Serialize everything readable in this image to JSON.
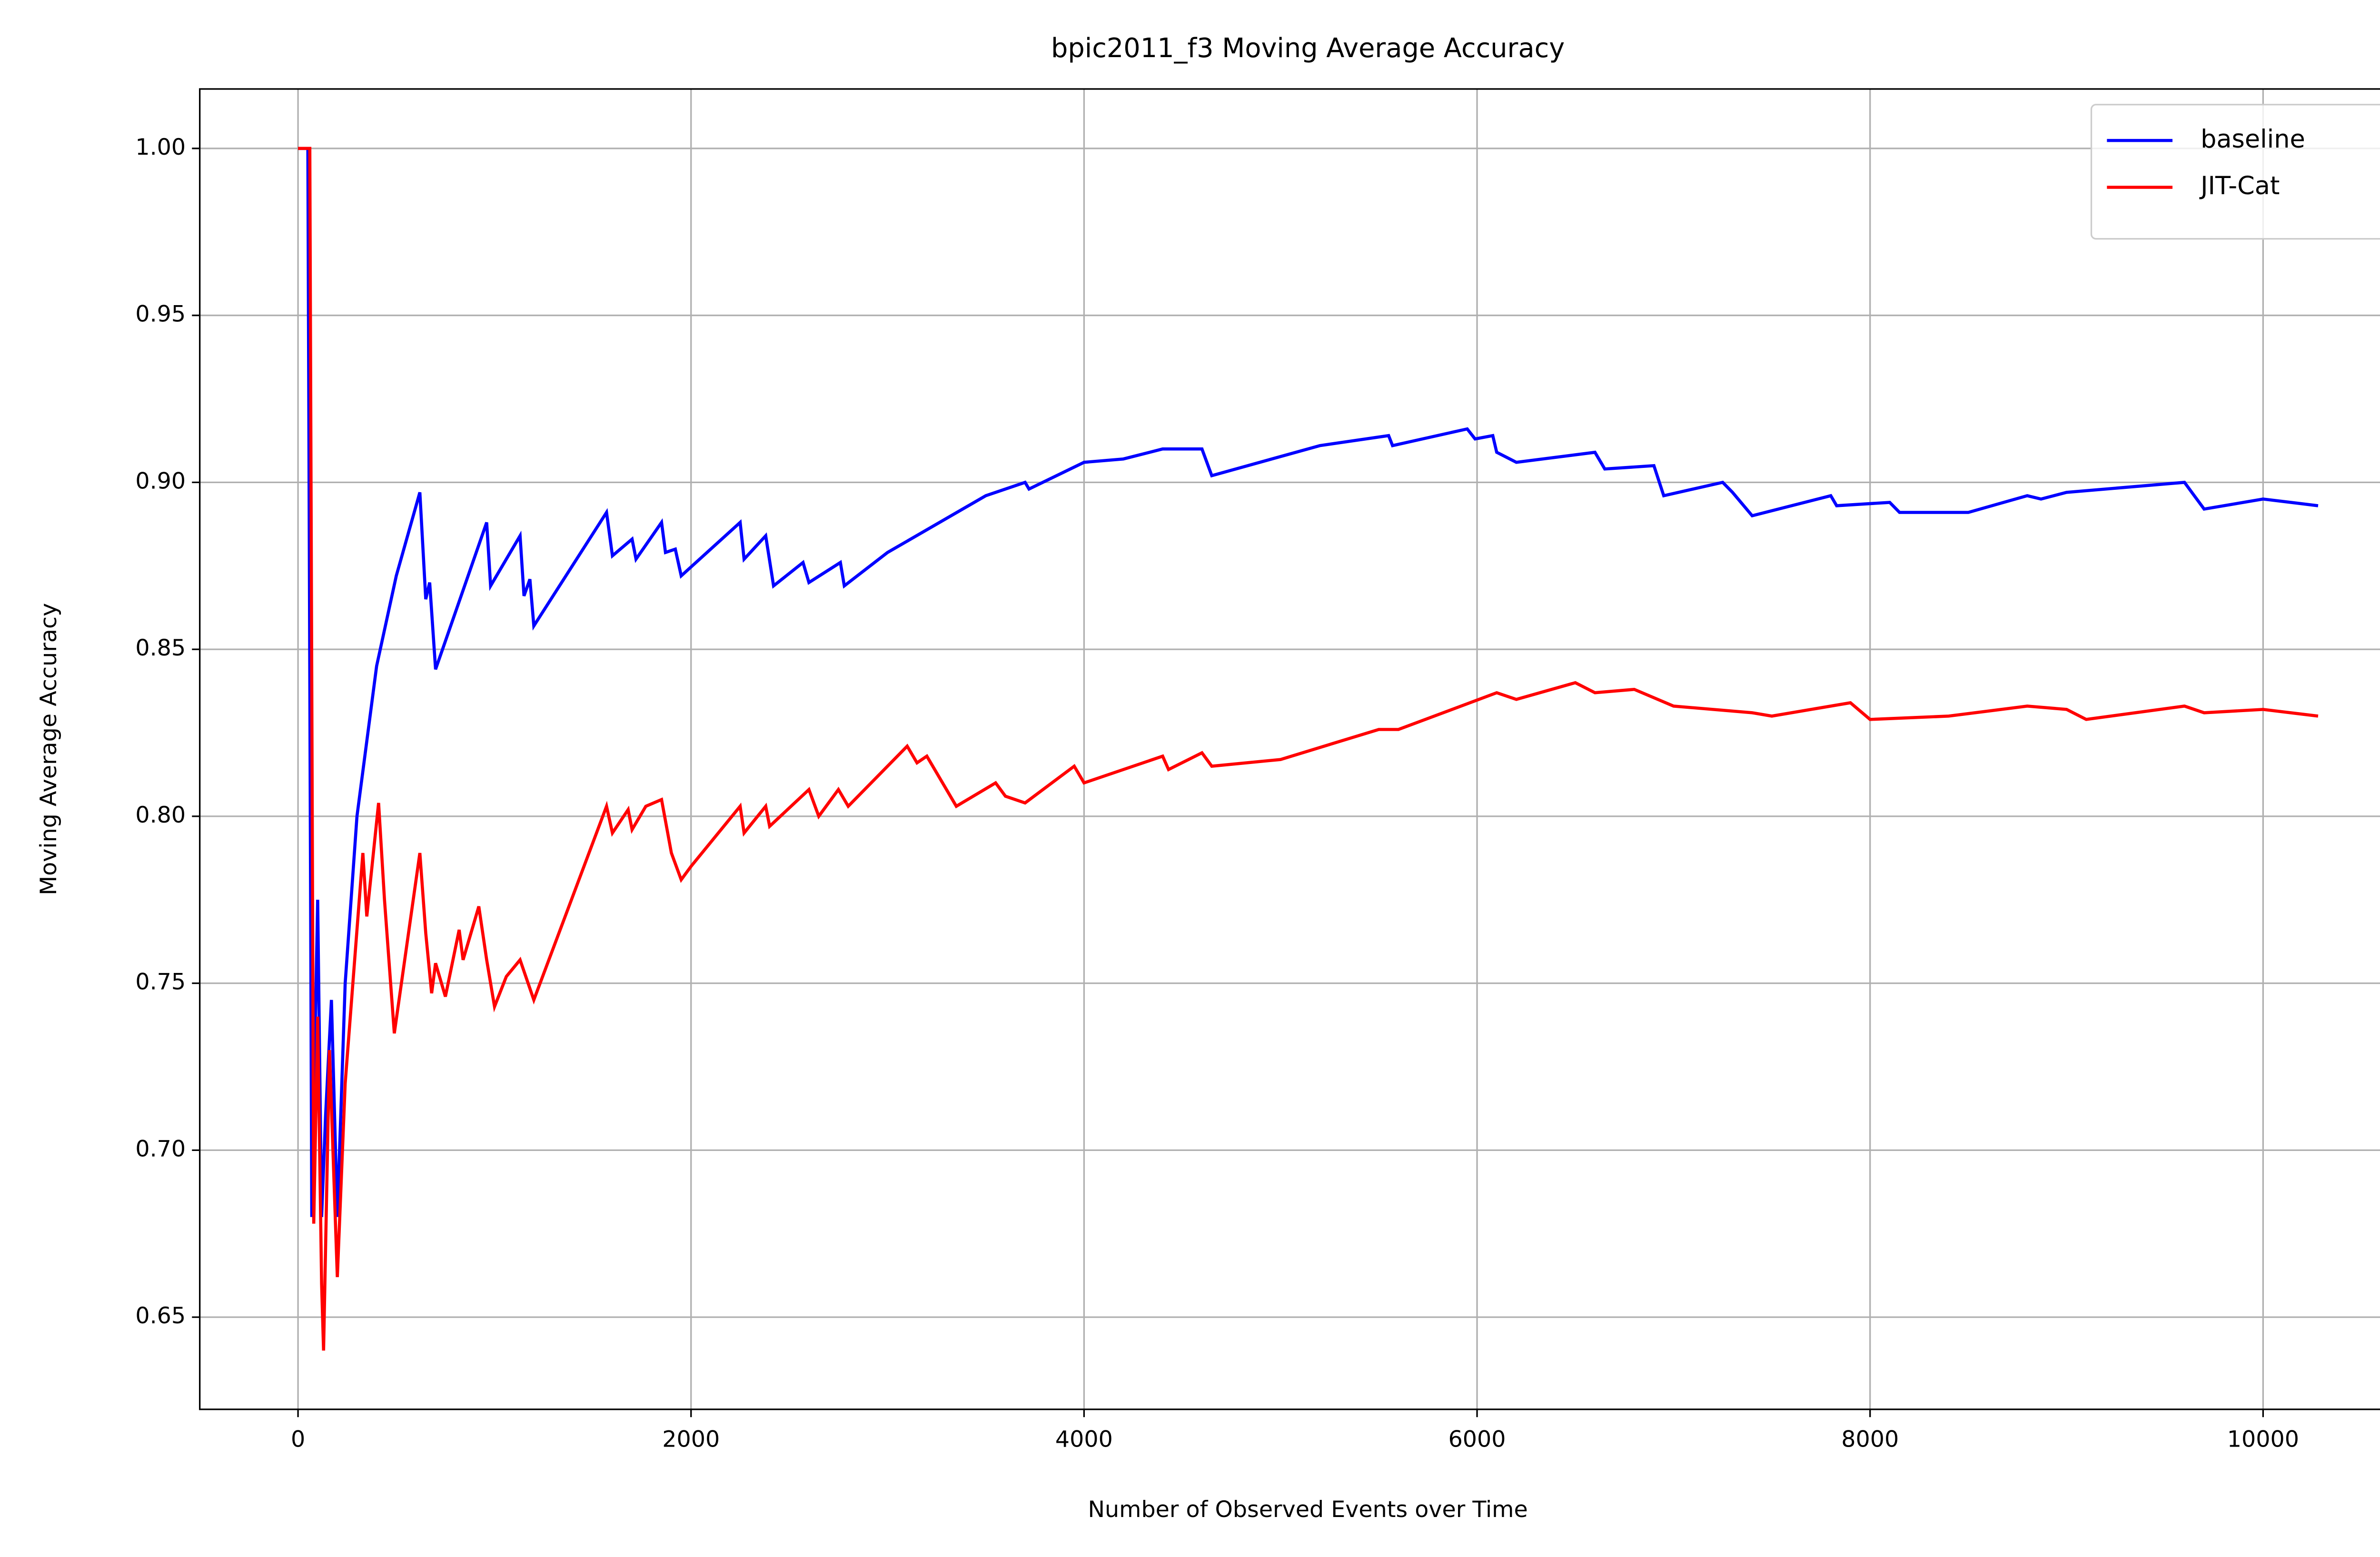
{
  "chart_data": {
    "type": "line",
    "title": "bpic2011_f3 Moving Average Accuracy",
    "xlabel": "Number of Observed Events over Time",
    "ylabel": "Moving Average Accuracy",
    "xlim": [
      -500,
      10778
    ],
    "xticks": [
      0,
      2000,
      4000,
      6000,
      8000,
      10000
    ],
    "ylim": [
      0.6224,
      1.0178
    ],
    "yticks": [
      {
        "value": 0.65,
        "label": "0.65"
      },
      {
        "value": 0.7,
        "label": "0.70"
      },
      {
        "value": 0.75,
        "label": "0.75"
      },
      {
        "value": 0.8,
        "label": "0.80"
      },
      {
        "value": 0.85,
        "label": "0.85"
      },
      {
        "value": 0.9,
        "label": "0.90"
      },
      {
        "value": 0.95,
        "label": "0.95"
      },
      {
        "value": 1.0,
        "label": "1.00"
      }
    ],
    "grid": true,
    "legend": "upper right",
    "series": [
      {
        "name": "baseline",
        "color": "#0000ff",
        "x": [
          0,
          50,
          70,
          100,
          120,
          140,
          170,
          200,
          240,
          300,
          400,
          500,
          620,
          650,
          670,
          700,
          960,
          980,
          1130,
          1150,
          1180,
          1200,
          1570,
          1600,
          1700,
          1720,
          1850,
          1870,
          1920,
          1950,
          2250,
          2270,
          2380,
          2420,
          2570,
          2600,
          2760,
          2780,
          3000,
          3500,
          3700,
          3720,
          4000,
          4200,
          4400,
          4600,
          4650,
          5200,
          5550,
          5570,
          5950,
          5990,
          6080,
          6100,
          6200,
          6600,
          6650,
          6900,
          6950,
          7250,
          7300,
          7400,
          7800,
          7830,
          8100,
          8150,
          8500,
          8800,
          8870,
          9000,
          9600,
          9650,
          9700,
          10000,
          10280
        ],
        "values": [
          1.0,
          1.0,
          0.68,
          0.775,
          0.68,
          0.71,
          0.745,
          0.68,
          0.75,
          0.8,
          0.845,
          0.872,
          0.897,
          0.865,
          0.87,
          0.844,
          0.888,
          0.869,
          0.884,
          0.866,
          0.871,
          0.857,
          0.891,
          0.878,
          0.883,
          0.877,
          0.888,
          0.879,
          0.88,
          0.872,
          0.888,
          0.877,
          0.884,
          0.869,
          0.876,
          0.87,
          0.876,
          0.869,
          0.879,
          0.896,
          0.9,
          0.898,
          0.906,
          0.907,
          0.91,
          0.91,
          0.902,
          0.911,
          0.914,
          0.911,
          0.916,
          0.913,
          0.914,
          0.909,
          0.906,
          0.909,
          0.904,
          0.905,
          0.896,
          0.9,
          0.897,
          0.89,
          0.896,
          0.893,
          0.894,
          0.891,
          0.891,
          0.896,
          0.895,
          0.897,
          0.9,
          0.896,
          0.892,
          0.895,
          0.893
        ]
      },
      {
        "name": "JIT-Cat",
        "color": "#ff0000",
        "x": [
          0,
          60,
          80,
          100,
          120,
          130,
          160,
          200,
          240,
          330,
          350,
          410,
          440,
          490,
          620,
          650,
          680,
          700,
          750,
          820,
          840,
          920,
          960,
          1000,
          1060,
          1130,
          1200,
          1570,
          1600,
          1680,
          1700,
          1770,
          1850,
          1900,
          1950,
          2000,
          2250,
          2270,
          2380,
          2400,
          2600,
          2650,
          2750,
          2800,
          3100,
          3150,
          3200,
          3350,
          3550,
          3600,
          3700,
          3950,
          4000,
          4400,
          4430,
          4600,
          4650,
          5000,
          5500,
          5600,
          6100,
          6200,
          6500,
          6600,
          6800,
          7000,
          7400,
          7500,
          7900,
          8000,
          8400,
          8800,
          9000,
          9100,
          9600,
          9700,
          10000,
          10280
        ],
        "values": [
          1.0,
          1.0,
          0.678,
          0.74,
          0.66,
          0.64,
          0.73,
          0.662,
          0.72,
          0.789,
          0.77,
          0.804,
          0.775,
          0.735,
          0.789,
          0.765,
          0.747,
          0.756,
          0.746,
          0.766,
          0.757,
          0.773,
          0.757,
          0.743,
          0.752,
          0.757,
          0.745,
          0.803,
          0.795,
          0.802,
          0.796,
          0.803,
          0.805,
          0.789,
          0.781,
          0.785,
          0.803,
          0.795,
          0.803,
          0.797,
          0.808,
          0.8,
          0.808,
          0.803,
          0.821,
          0.816,
          0.818,
          0.803,
          0.81,
          0.806,
          0.804,
          0.815,
          0.81,
          0.818,
          0.814,
          0.819,
          0.815,
          0.817,
          0.826,
          0.826,
          0.837,
          0.835,
          0.84,
          0.837,
          0.838,
          0.833,
          0.831,
          0.83,
          0.834,
          0.829,
          0.83,
          0.833,
          0.832,
          0.829,
          0.833,
          0.831,
          0.832,
          0.83
        ]
      }
    ]
  }
}
